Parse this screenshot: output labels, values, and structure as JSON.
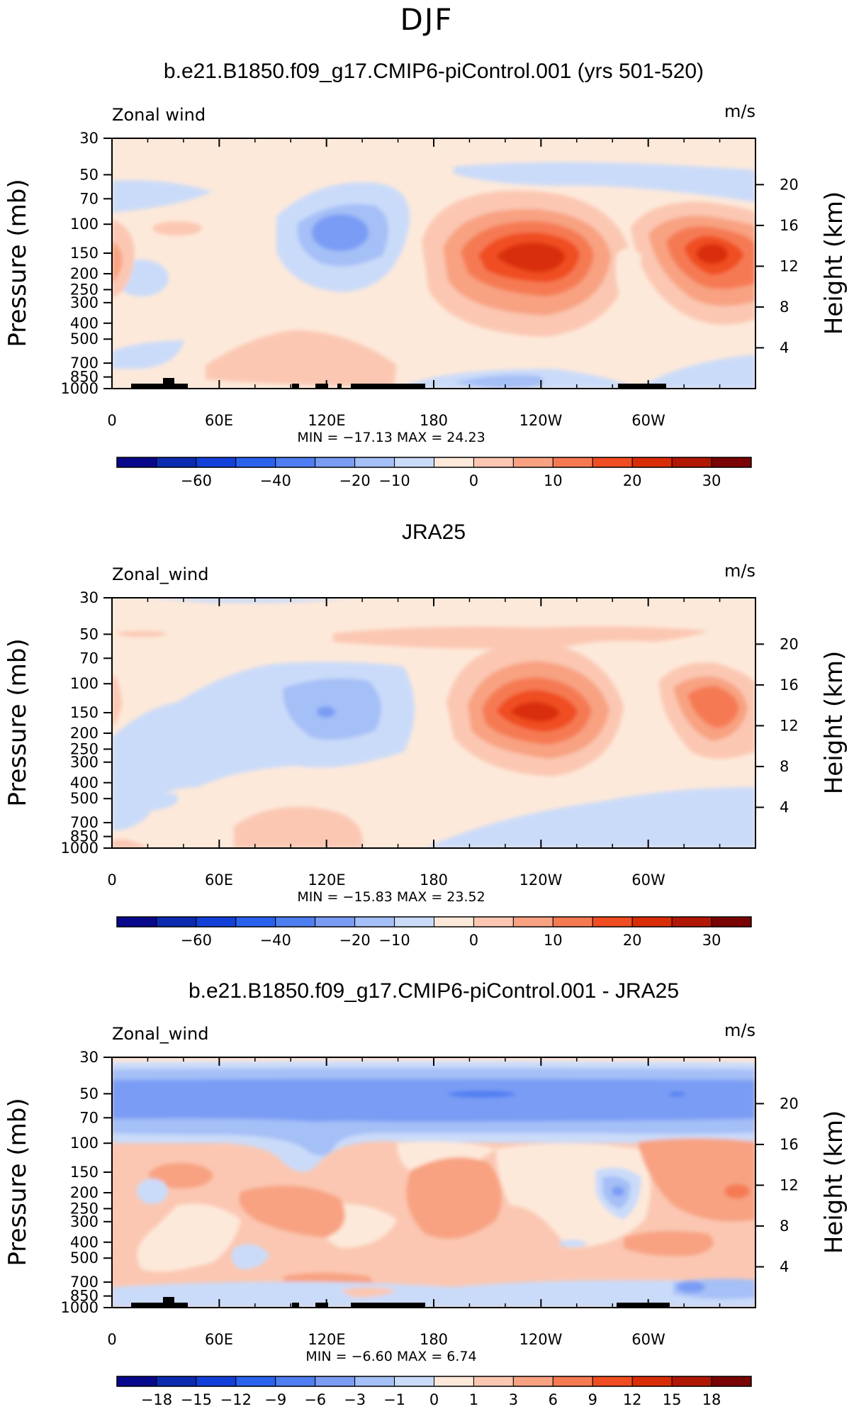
{
  "figure_title": "DJF",
  "colors": {
    "full_levels": [
      "#08088c",
      "#0b2bb0",
      "#1340d8",
      "#2a62ee",
      "#4f7ef2",
      "#7a9cf4",
      "#a5bff7",
      "#cadbf9",
      "#fde9da",
      "#fbc7b2",
      "#f8a282",
      "#f57a52",
      "#f04d22",
      "#d92d08",
      "#b01705",
      "#7a0303"
    ],
    "diff_levels": [
      "#08088c",
      "#0b2bb0",
      "#1340d8",
      "#2a62ee",
      "#4f7ef2",
      "#7a9cf4",
      "#a5bff7",
      "#cadbf9",
      "#fde9da",
      "#fbc7b2",
      "#f8a282",
      "#f57a52",
      "#f04d22",
      "#d92d08",
      "#b01705",
      "#7a0303"
    ]
  },
  "chart_data": [
    {
      "type": "contour",
      "title": "b.e21.B1850.f09_g17.CMIP6-piControl.001 (yrs 501-520)",
      "left_label": "Zonal wind",
      "right_label": "m/s",
      "ylabel": "Pressure (mb)",
      "ylabel_right": "Height (km)",
      "x_ticks": [
        "0",
        "60E",
        "120E",
        "180",
        "120W",
        "60W"
      ],
      "y_ticks": [
        "30",
        "50",
        "70",
        "100",
        "150",
        "200",
        "250",
        "300",
        "400",
        "500",
        "700",
        "850",
        "1000"
      ],
      "y_right_ticks": [
        "20",
        "16",
        "12",
        "8",
        "4"
      ],
      "minmax_text": "MIN = −17.13   MAX =  24.23",
      "min": -17.13,
      "max": 24.23,
      "colorbar_labels": [
        "−60",
        "−40",
        "−20",
        "−10",
        "0",
        "10",
        "20",
        "30"
      ]
    },
    {
      "type": "contour",
      "title": "JRA25",
      "left_label": "Zonal_wind",
      "right_label": "m/s",
      "ylabel": "Pressure (mb)",
      "ylabel_right": "Height (km)",
      "x_ticks": [
        "0",
        "60E",
        "120E",
        "180",
        "120W",
        "60W"
      ],
      "y_ticks": [
        "30",
        "50",
        "70",
        "100",
        "150",
        "200",
        "250",
        "300",
        "400",
        "500",
        "700",
        "850",
        "1000"
      ],
      "y_right_ticks": [
        "20",
        "16",
        "12",
        "8",
        "4"
      ],
      "minmax_text": "MIN = −15.83   MAX =  23.52",
      "min": -15.83,
      "max": 23.52,
      "colorbar_labels": [
        "−60",
        "−40",
        "−20",
        "−10",
        "0",
        "10",
        "20",
        "30"
      ]
    },
    {
      "type": "contour",
      "title": "b.e21.B1850.f09_g17.CMIP6-piControl.001 - JRA25",
      "left_label": "Zonal_wind",
      "right_label": "m/s",
      "ylabel": "Pressure (mb)",
      "ylabel_right": "Height (km)",
      "x_ticks": [
        "0",
        "60E",
        "120E",
        "180",
        "120W",
        "60W"
      ],
      "y_ticks": [
        "30",
        "50",
        "70",
        "100",
        "150",
        "200",
        "250",
        "300",
        "400",
        "500",
        "700",
        "850",
        "1000"
      ],
      "y_right_ticks": [
        "20",
        "16",
        "12",
        "8",
        "4"
      ],
      "minmax_text": "MIN =   −6.60   MAX =   6.74",
      "min": -6.6,
      "max": 6.74,
      "colorbar_labels": [
        "−18",
        "−15",
        "−12",
        "−9",
        "−6",
        "−3",
        "−1",
        "0",
        "1",
        "3",
        "6",
        "9",
        "12",
        "15",
        "18"
      ]
    }
  ]
}
